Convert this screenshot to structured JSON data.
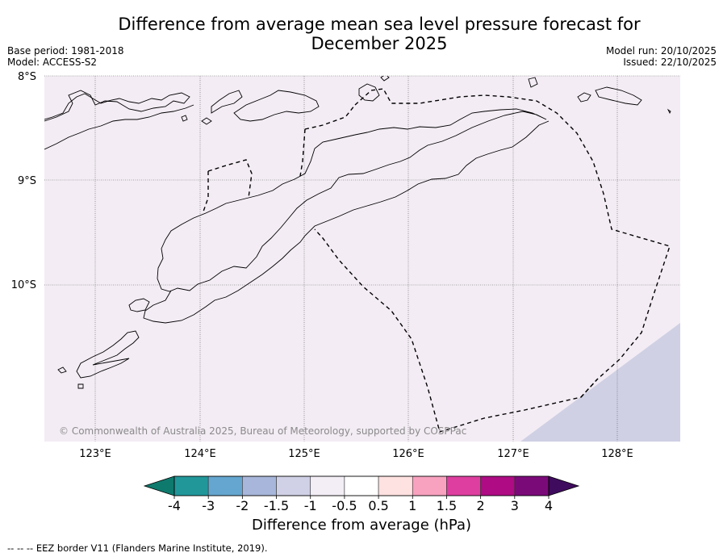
{
  "title": {
    "line1": "Difference from average mean sea level pressure forecast for",
    "line2": "December 2025"
  },
  "meta": {
    "base_period": "Base period: 1981-2018",
    "model": "Model: ACCESS-S2",
    "model_run": "Model run: 20/10/2025",
    "issued": "Issued: 22/10/2025"
  },
  "map": {
    "latitude_labels": [
      "8°S",
      "9°S",
      "10°S"
    ],
    "longitude_labels": [
      "123°E",
      "124°E",
      "125°E",
      "126°E",
      "127°E",
      "128°E"
    ],
    "background_color": "#f3ecf4",
    "shaded_region_color": "#cfd0e4",
    "copyright": "© Commonwealth of Australia 2025, Bureau of Meteorology, supported by COSPPac"
  },
  "colorbar": {
    "title": "Difference from average (hPa)",
    "tick_labels": [
      "-4",
      "-3",
      "-2",
      "-1.5",
      "-1",
      "-0.5",
      "0.5",
      "1",
      "1.5",
      "2",
      "3",
      "4"
    ],
    "colors": [
      "#0e7a6d",
      "#21979a",
      "#64a6cf",
      "#a7b6da",
      "#d0d0e6",
      "#f3edf5",
      "#ffffff",
      "#fee1e1",
      "#f8a2bf",
      "#de3ea0",
      "#ae0b84",
      "#7b0a79",
      "#3f0b5e"
    ]
  },
  "footer": "--  --  -- EEZ border V11 (Flanders Marine Institute, 2019)."
}
